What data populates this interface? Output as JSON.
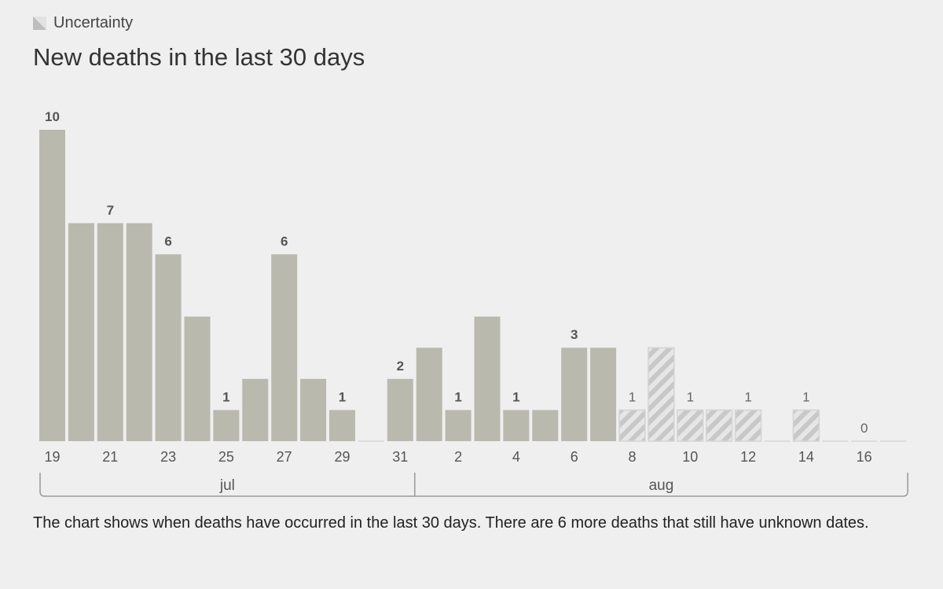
{
  "legend": {
    "label": "Uncertainty",
    "icon": "hatched-swatch-icon"
  },
  "title": "New deaths in the last 30 days",
  "caption": "The chart shows when deaths have occurred in the last 30 days. There are 6 more deaths that still have unknown dates.",
  "colors": {
    "bar": "#b9b9ae",
    "hatch_light": "#e6e6e6",
    "hatch_dark": "#c8c8c8",
    "background": "#efefef",
    "axis": "#999999",
    "text": "#333333"
  },
  "chart_data": {
    "type": "bar",
    "title": "New deaths in the last 30 days",
    "xlabel": "",
    "ylabel": "",
    "ylim": [
      0,
      10
    ],
    "grid": false,
    "legend": "top-left",
    "categories": [
      "19",
      "20",
      "21",
      "22",
      "23",
      "24",
      "25",
      "26",
      "27",
      "28",
      "29",
      "30",
      "31",
      "1",
      "2",
      "3",
      "4",
      "5",
      "6",
      "7",
      "8",
      "9",
      "10",
      "11",
      "12",
      "13",
      "14",
      "15",
      "16",
      "17"
    ],
    "values": [
      10,
      7,
      7,
      7,
      6,
      4,
      1,
      2,
      6,
      2,
      1,
      0,
      2,
      3,
      1,
      4,
      1,
      1,
      3,
      3,
      1,
      3,
      1,
      1,
      1,
      0,
      1,
      0,
      0,
      0
    ],
    "uncertain": [
      false,
      false,
      false,
      false,
      false,
      false,
      false,
      false,
      false,
      false,
      false,
      false,
      false,
      false,
      false,
      false,
      false,
      false,
      false,
      false,
      true,
      true,
      true,
      true,
      true,
      true,
      true,
      true,
      true,
      true
    ],
    "value_labels": [
      {
        "index": 0,
        "text": "10"
      },
      {
        "index": 2,
        "text": "7"
      },
      {
        "index": 4,
        "text": "6"
      },
      {
        "index": 6,
        "text": "1"
      },
      {
        "index": 8,
        "text": "6"
      },
      {
        "index": 10,
        "text": "1"
      },
      {
        "index": 12,
        "text": "2"
      },
      {
        "index": 14,
        "text": "1"
      },
      {
        "index": 16,
        "text": "1"
      },
      {
        "index": 18,
        "text": "3"
      },
      {
        "index": 20,
        "text": "1"
      },
      {
        "index": 22,
        "text": "1"
      },
      {
        "index": 24,
        "text": "1"
      },
      {
        "index": 26,
        "text": "1"
      },
      {
        "index": 28,
        "text": "0"
      }
    ],
    "tick_labels": [
      {
        "index": 0,
        "text": "19"
      },
      {
        "index": 2,
        "text": "21"
      },
      {
        "index": 4,
        "text": "23"
      },
      {
        "index": 6,
        "text": "25"
      },
      {
        "index": 8,
        "text": "27"
      },
      {
        "index": 10,
        "text": "29"
      },
      {
        "index": 12,
        "text": "31"
      },
      {
        "index": 14,
        "text": "2"
      },
      {
        "index": 16,
        "text": "4"
      },
      {
        "index": 18,
        "text": "6"
      },
      {
        "index": 20,
        "text": "8"
      },
      {
        "index": 22,
        "text": "10"
      },
      {
        "index": 24,
        "text": "12"
      },
      {
        "index": 26,
        "text": "14"
      },
      {
        "index": 28,
        "text": "16"
      }
    ],
    "months": [
      {
        "label": "jul",
        "start_index": 0,
        "end_index": 12
      },
      {
        "label": "aug",
        "start_index": 13,
        "end_index": 29
      }
    ]
  }
}
